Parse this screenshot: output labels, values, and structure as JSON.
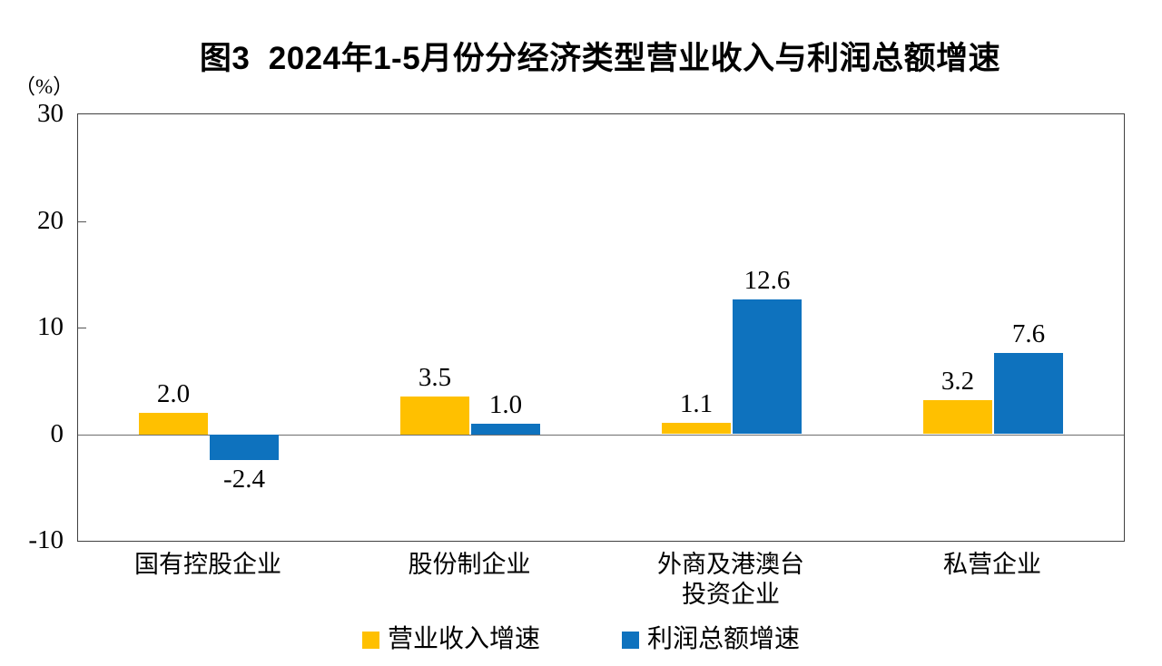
{
  "title": "图3  2024年1-5月份分经济类型营业收入与利润总额增速",
  "unit_label": "（%）",
  "colors": {
    "revenue_series": "#FFC000",
    "profit_series": "#0E72BE",
    "plot_border": "#404040",
    "zero_line": "#6e6e6e",
    "text": "#000000"
  },
  "chart_data": {
    "type": "bar",
    "title": "图3  2024年1-5月份分经济类型营业收入与利润总额增速",
    "categories": [
      "国有控股企业",
      "股份制企业",
      "外商及港澳台\n投资企业",
      "私营企业"
    ],
    "series": [
      {
        "name": "营业收入增速",
        "color": "#FFC000",
        "values": [
          2.0,
          3.5,
          1.1,
          3.2
        ]
      },
      {
        "name": "利润总额增速",
        "color": "#0E72BE",
        "values": [
          -2.4,
          1.0,
          12.6,
          7.6
        ]
      }
    ],
    "xlabel": "",
    "ylabel": "（%）",
    "ylim": [
      -10,
      30
    ],
    "yticks": [
      30,
      20,
      10,
      0,
      -10
    ],
    "grid": false,
    "legend_position": "bottom",
    "data_label_decimals": 1
  }
}
